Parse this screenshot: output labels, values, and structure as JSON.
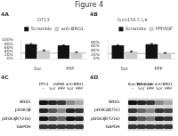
{
  "title": "Figure 4",
  "chart_data": [
    {
      "type": "bar",
      "title": "4A",
      "subtitle": "DT13",
      "categories": [
        "Sor",
        "PPP"
      ],
      "series": [
        {
          "name": "Scramble",
          "color": "#111111",
          "values": [
            78,
            72
          ],
          "errors": [
            4,
            3
          ]
        },
        {
          "name": "anti-BRG1",
          "color": "#cccccc",
          "values": [
            45,
            35
          ],
          "errors": [
            3,
            2
          ]
        }
      ],
      "ylim": [
        0,
        100
      ],
      "yticks": [
        {
          "value": 0,
          "label": "0%"
        },
        {
          "value": 20,
          "label": "20%"
        },
        {
          "value": 40,
          "label": "40%"
        },
        {
          "value": 60,
          "label": "60%"
        },
        {
          "value": 80,
          "label": "80%"
        },
        {
          "value": 100,
          "label": "100%"
        }
      ],
      "hline": 30,
      "legend": "upper right",
      "grid": false
    },
    {
      "type": "bar",
      "title": "4B",
      "subtitle": "Sum159 C.L#",
      "categories": [
        "Sor",
        "PPP"
      ],
      "series": [
        {
          "name": "Scramble",
          "color": "#111111",
          "values": [
            65,
            70
          ],
          "errors": [
            3,
            4
          ]
        },
        {
          "name": "PPP/IGF",
          "color": "#cccccc",
          "values": [
            35,
            28
          ],
          "errors": [
            2,
            2
          ]
        }
      ],
      "ylim": [
        0,
        90
      ],
      "yticks": [
        {
          "value": 0,
          "label": "0%"
        },
        {
          "value": 20,
          "label": "20%"
        },
        {
          "value": 40,
          "label": "40%"
        },
        {
          "value": 60,
          "label": "60%"
        },
        {
          "value": 80,
          "label": "80%"
        }
      ],
      "hline": 25,
      "legend": "upper right",
      "grid": false
    },
    {
      "type": "blot",
      "title": "4C",
      "categories": [
        "-",
        "Sor",
        "PPP",
        "Sor",
        "PPP"
      ],
      "rows": [
        "BRG1",
        "pGSK3β",
        "pGSK3β(Y216)",
        "GAPDH"
      ],
      "colors": [
        [
          "#111",
          "#222",
          "#333",
          "#888",
          "#aaa"
        ],
        [
          "#222",
          "#555",
          "#888",
          "#222",
          "#333"
        ],
        [
          "#111",
          "#444",
          "#666",
          "#111",
          "#222"
        ],
        [
          "#333",
          "#333",
          "#333",
          "#333",
          "#333"
        ]
      ],
      "annotations": [
        "DT13",
        "shRNA anti-BRG1"
      ],
      "grid": false
    },
    {
      "type": "blot",
      "title": "4D",
      "categories": [
        "-",
        "Sor",
        "PPP",
        "Sor",
        "PPP"
      ],
      "rows": [
        "BRG1",
        "pGSK3β(Thr)",
        "pGSK3β(Y216)",
        "GAPDH"
      ],
      "colors": [
        [
          "#111",
          "#222",
          "#333",
          "#888",
          "#aaa"
        ],
        [
          "#333",
          "#666",
          "#888",
          "#333",
          "#444"
        ],
        [
          "#222",
          "#555",
          "#777",
          "#222",
          "#333"
        ],
        [
          "#333",
          "#333",
          "#333",
          "#333",
          "#333"
        ]
      ],
      "annotations": [
        "Sum159 C.L#",
        "Scramble anti-BRG1"
      ],
      "grid": false
    }
  ]
}
